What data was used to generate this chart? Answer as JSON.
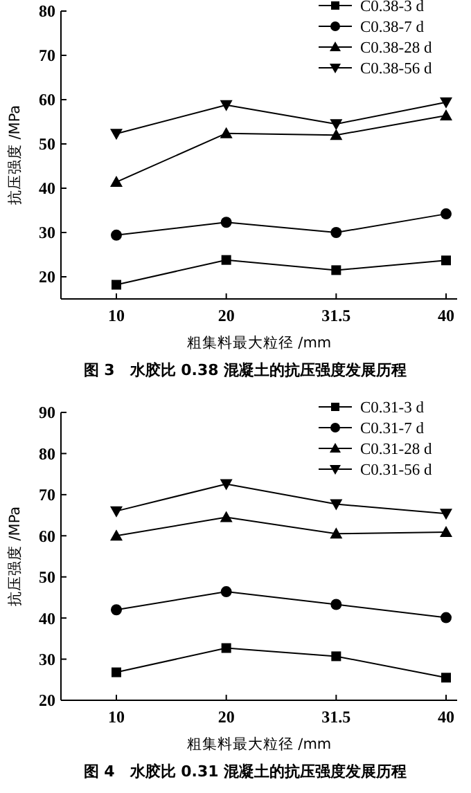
{
  "chart_data": [
    {
      "type": "line",
      "title": "图 3　水胶比 0.38 混凝土的抗压强度发展历程",
      "xlabel": "粗集料最大粒径 /mm",
      "ylabel": "抗压强度 /MPa",
      "categories": [
        "10",
        "20",
        "31.5",
        "40"
      ],
      "ylim": [
        15,
        80
      ],
      "yticks": [
        20,
        30,
        40,
        50,
        60,
        70,
        80
      ],
      "legend": "top right",
      "series": [
        {
          "name": "C0.38-3 d",
          "color": "#000000",
          "marker": "square",
          "values": [
            18.2,
            23.8,
            21.5,
            23.7
          ]
        },
        {
          "name": "C0.38-7 d",
          "color": "#000000",
          "marker": "circle",
          "values": [
            29.4,
            32.3,
            30.0,
            34.2
          ]
        },
        {
          "name": "C0.38-28 d",
          "color": "#000000",
          "marker": "triangle",
          "values": [
            41.4,
            52.4,
            52.0,
            56.4
          ]
        },
        {
          "name": "C0.38-56 d",
          "color": "#000000",
          "marker": "triangle-down",
          "values": [
            52.3,
            58.8,
            54.5,
            59.4
          ]
        }
      ]
    },
    {
      "type": "line",
      "title": "图 4　水胶比 0.31 混凝土的抗压强度发展历程",
      "xlabel": "粗集料最大粒径 /mm",
      "ylabel": "抗压强度 /MPa",
      "categories": [
        "10",
        "20",
        "31.5",
        "40"
      ],
      "ylim": [
        20,
        90
      ],
      "yticks": [
        20,
        30,
        40,
        50,
        60,
        70,
        80,
        90
      ],
      "legend": "top right",
      "series": [
        {
          "name": "C0.31-3 d",
          "color": "#000000",
          "marker": "square",
          "values": [
            26.8,
            32.7,
            30.7,
            25.5
          ]
        },
        {
          "name": "C0.31-7 d",
          "color": "#000000",
          "marker": "circle",
          "values": [
            42.0,
            46.4,
            43.3,
            40.1
          ]
        },
        {
          "name": "C0.31-28 d",
          "color": "#000000",
          "marker": "triangle",
          "values": [
            60.0,
            64.5,
            60.5,
            60.9
          ]
        },
        {
          "name": "C0.31-56 d",
          "color": "#000000",
          "marker": "triangle-down",
          "values": [
            66.0,
            72.6,
            67.7,
            65.4
          ]
        }
      ]
    }
  ]
}
